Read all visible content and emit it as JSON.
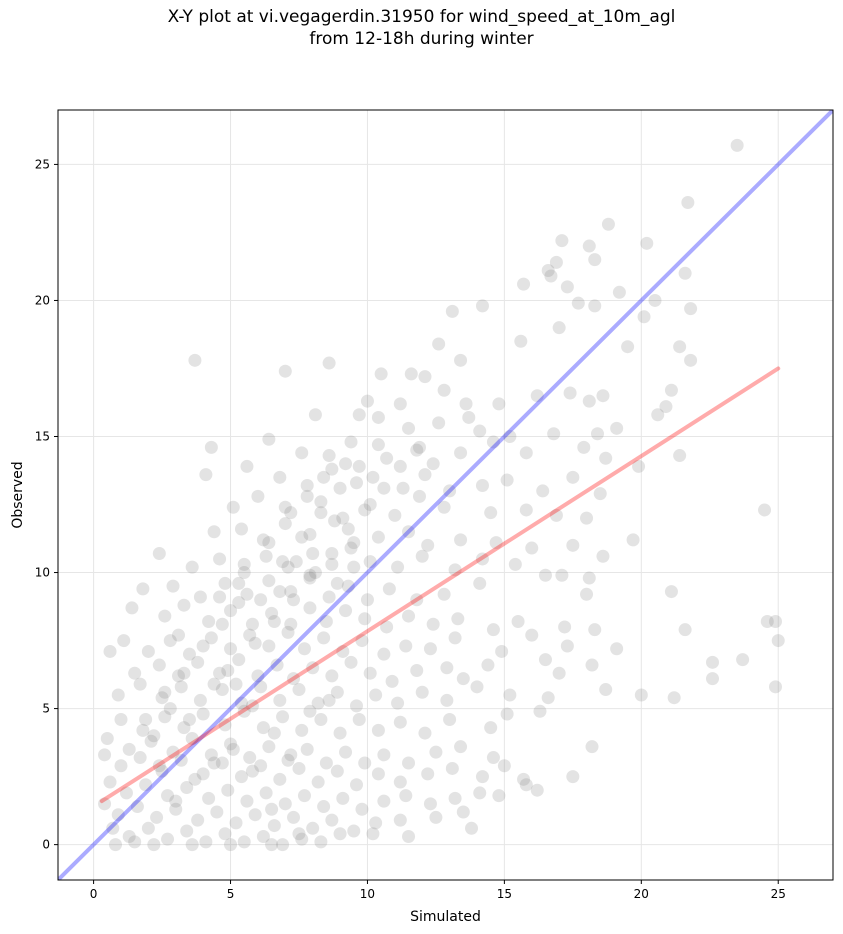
{
  "chart_data": {
    "type": "scatter",
    "title_line1": "X-Y plot at vi.vegagerdin.31950 for wind_speed_at_10m_agl",
    "title_line2": "from 12-18h during winter",
    "xlabel": "Simulated",
    "ylabel": "Observed",
    "xlim": [
      -1.3,
      27
    ],
    "ylim": [
      -1.3,
      27
    ],
    "xticks": [
      0,
      5,
      10,
      15,
      20,
      25
    ],
    "yticks": [
      0,
      5,
      10,
      15,
      20,
      25
    ],
    "grid": true,
    "point_color": "#808080",
    "identity_line": {
      "color": "#0000ff",
      "x": [
        -1.3,
        27
      ],
      "y": [
        -1.3,
        27
      ]
    },
    "regression_line": {
      "color": "#ff0000",
      "x": [
        0.3,
        25
      ],
      "y": [
        1.6,
        17.5
      ]
    },
    "points": [
      [
        23.5,
        25.7
      ],
      [
        21.7,
        23.6
      ],
      [
        18.8,
        22.8
      ],
      [
        17.1,
        22.2
      ],
      [
        20.2,
        22.1
      ],
      [
        18.3,
        21.5
      ],
      [
        16.9,
        21.4
      ],
      [
        16.6,
        21.1
      ],
      [
        18.1,
        22.0
      ],
      [
        21.6,
        21.0
      ],
      [
        16.7,
        20.9
      ],
      [
        15.7,
        20.6
      ],
      [
        17.3,
        20.5
      ],
      [
        20.5,
        20.0
      ],
      [
        14.2,
        19.8
      ],
      [
        17.7,
        19.9
      ],
      [
        18.3,
        19.8
      ],
      [
        21.8,
        19.7
      ],
      [
        19.2,
        20.3
      ],
      [
        20.1,
        19.4
      ],
      [
        13.1,
        19.6
      ],
      [
        17.0,
        19.0
      ],
      [
        19.5,
        18.3
      ],
      [
        15.6,
        18.5
      ],
      [
        12.6,
        18.4
      ],
      [
        3.7,
        17.8
      ],
      [
        7.0,
        17.4
      ],
      [
        8.6,
        17.7
      ],
      [
        13.4,
        17.8
      ],
      [
        21.8,
        17.8
      ],
      [
        10.5,
        17.3
      ],
      [
        11.6,
        17.3
      ],
      [
        12.1,
        17.2
      ],
      [
        21.4,
        18.3
      ],
      [
        17.4,
        16.6
      ],
      [
        18.6,
        16.5
      ],
      [
        21.1,
        16.7
      ],
      [
        16.2,
        16.5
      ],
      [
        12.8,
        16.7
      ],
      [
        13.6,
        16.2
      ],
      [
        11.2,
        16.2
      ],
      [
        14.8,
        16.2
      ],
      [
        10.0,
        16.3
      ],
      [
        18.1,
        16.3
      ],
      [
        20.6,
        15.8
      ],
      [
        8.1,
        15.8
      ],
      [
        9.7,
        15.8
      ],
      [
        15.2,
        15.0
      ],
      [
        16.8,
        15.1
      ],
      [
        18.4,
        15.1
      ],
      [
        20.9,
        16.1
      ],
      [
        19.1,
        15.3
      ],
      [
        14.1,
        15.2
      ],
      [
        10.4,
        15.7
      ],
      [
        11.5,
        15.3
      ],
      [
        12.6,
        15.5
      ],
      [
        13.7,
        15.7
      ],
      [
        4.3,
        14.6
      ],
      [
        6.4,
        14.9
      ],
      [
        7.6,
        14.4
      ],
      [
        8.6,
        14.3
      ],
      [
        9.4,
        14.8
      ],
      [
        10.7,
        14.2
      ],
      [
        11.8,
        14.5
      ],
      [
        12.4,
        14.0
      ],
      [
        13.4,
        14.4
      ],
      [
        14.6,
        14.8
      ],
      [
        15.8,
        14.4
      ],
      [
        17.9,
        14.6
      ],
      [
        18.7,
        14.2
      ],
      [
        19.9,
        13.9
      ],
      [
        21.4,
        14.3
      ],
      [
        4.1,
        13.6
      ],
      [
        5.6,
        13.9
      ],
      [
        6.8,
        13.5
      ],
      [
        7.8,
        13.2
      ],
      [
        8.7,
        13.8
      ],
      [
        9.6,
        13.3
      ],
      [
        10.2,
        13.5
      ],
      [
        11.3,
        13.1
      ],
      [
        12.1,
        13.6
      ],
      [
        13.0,
        13.0
      ],
      [
        14.2,
        13.2
      ],
      [
        15.1,
        13.4
      ],
      [
        16.4,
        13.0
      ],
      [
        17.5,
        13.5
      ],
      [
        18.5,
        12.9
      ],
      [
        5.1,
        12.4
      ],
      [
        6.0,
        12.8
      ],
      [
        7.2,
        12.2
      ],
      [
        8.3,
        12.6
      ],
      [
        9.1,
        12.0
      ],
      [
        10.1,
        12.5
      ],
      [
        11.0,
        12.1
      ],
      [
        11.9,
        12.8
      ],
      [
        12.8,
        12.4
      ],
      [
        14.5,
        12.2
      ],
      [
        15.8,
        12.3
      ],
      [
        16.9,
        12.1
      ],
      [
        18.0,
        12.0
      ],
      [
        24.5,
        12.3
      ],
      [
        4.4,
        11.5
      ],
      [
        5.4,
        11.6
      ],
      [
        6.2,
        11.2
      ],
      [
        7.0,
        11.8
      ],
      [
        7.9,
        11.4
      ],
      [
        8.8,
        11.9
      ],
      [
        9.5,
        11.1
      ],
      [
        10.4,
        11.3
      ],
      [
        11.5,
        11.5
      ],
      [
        12.2,
        11.0
      ],
      [
        13.4,
        11.2
      ],
      [
        14.7,
        11.1
      ],
      [
        16.0,
        10.9
      ],
      [
        17.5,
        11.0
      ],
      [
        18.6,
        10.6
      ],
      [
        19.7,
        11.2
      ],
      [
        2.4,
        10.7
      ],
      [
        3.6,
        10.2
      ],
      [
        4.6,
        10.5
      ],
      [
        5.5,
        10.0
      ],
      [
        6.3,
        10.6
      ],
      [
        7.1,
        10.2
      ],
      [
        8.0,
        10.7
      ],
      [
        8.7,
        10.3
      ],
      [
        9.4,
        10.9
      ],
      [
        10.1,
        10.4
      ],
      [
        11.1,
        10.2
      ],
      [
        12.0,
        10.6
      ],
      [
        13.2,
        10.1
      ],
      [
        14.2,
        10.5
      ],
      [
        15.4,
        10.3
      ],
      [
        17.1,
        9.9
      ],
      [
        18.1,
        9.8
      ],
      [
        1.8,
        9.4
      ],
      [
        2.9,
        9.5
      ],
      [
        3.9,
        9.1
      ],
      [
        4.8,
        9.6
      ],
      [
        5.6,
        9.2
      ],
      [
        6.4,
        9.7
      ],
      [
        7.2,
        9.3
      ],
      [
        7.9,
        9.8
      ],
      [
        8.6,
        9.1
      ],
      [
        9.3,
        9.5
      ],
      [
        10.0,
        9.0
      ],
      [
        10.8,
        9.4
      ],
      [
        11.8,
        9.0
      ],
      [
        12.8,
        9.2
      ],
      [
        14.1,
        9.6
      ],
      [
        16.5,
        9.9
      ],
      [
        18.0,
        9.2
      ],
      [
        21.1,
        9.3
      ],
      [
        1.4,
        8.7
      ],
      [
        2.6,
        8.4
      ],
      [
        3.3,
        8.8
      ],
      [
        4.2,
        8.2
      ],
      [
        5.0,
        8.6
      ],
      [
        5.8,
        8.1
      ],
      [
        6.5,
        8.5
      ],
      [
        7.2,
        8.1
      ],
      [
        7.9,
        8.7
      ],
      [
        8.5,
        8.2
      ],
      [
        9.2,
        8.6
      ],
      [
        9.9,
        8.3
      ],
      [
        10.7,
        8.0
      ],
      [
        11.5,
        8.4
      ],
      [
        12.4,
        8.1
      ],
      [
        13.3,
        8.3
      ],
      [
        14.6,
        7.9
      ],
      [
        15.5,
        8.2
      ],
      [
        17.2,
        8.0
      ],
      [
        18.3,
        7.9
      ],
      [
        21.6,
        7.9
      ],
      [
        24.6,
        8.2
      ],
      [
        24.9,
        8.2
      ],
      [
        1.1,
        7.5
      ],
      [
        2.0,
        7.1
      ],
      [
        2.8,
        7.5
      ],
      [
        3.5,
        7.0
      ],
      [
        4.3,
        7.6
      ],
      [
        5.0,
        7.2
      ],
      [
        5.7,
        7.7
      ],
      [
        6.4,
        7.3
      ],
      [
        7.1,
        7.8
      ],
      [
        7.7,
        7.2
      ],
      [
        8.4,
        7.6
      ],
      [
        9.1,
        7.1
      ],
      [
        9.8,
        7.5
      ],
      [
        10.6,
        7.0
      ],
      [
        11.4,
        7.3
      ],
      [
        12.3,
        7.2
      ],
      [
        13.2,
        7.6
      ],
      [
        14.9,
        7.1
      ],
      [
        16.0,
        7.7
      ],
      [
        17.3,
        7.3
      ],
      [
        19.1,
        7.2
      ],
      [
        25.0,
        7.5
      ],
      [
        0.6,
        7.1
      ],
      [
        1.5,
        6.3
      ],
      [
        2.4,
        6.6
      ],
      [
        3.1,
        6.2
      ],
      [
        3.8,
        6.7
      ],
      [
        4.6,
        6.3
      ],
      [
        5.3,
        6.8
      ],
      [
        6.0,
        6.2
      ],
      [
        6.7,
        6.6
      ],
      [
        7.3,
        6.1
      ],
      [
        8.0,
        6.5
      ],
      [
        8.7,
        6.2
      ],
      [
        9.4,
        6.7
      ],
      [
        10.1,
        6.3
      ],
      [
        10.9,
        6.0
      ],
      [
        11.8,
        6.4
      ],
      [
        12.9,
        6.5
      ],
      [
        13.5,
        6.1
      ],
      [
        14.4,
        6.6
      ],
      [
        16.5,
        6.8
      ],
      [
        17.0,
        6.3
      ],
      [
        18.2,
        6.6
      ],
      [
        22.6,
        6.7
      ],
      [
        22.6,
        6.1
      ],
      [
        23.7,
        6.8
      ],
      [
        0.9,
        5.5
      ],
      [
        1.7,
        5.9
      ],
      [
        2.5,
        5.4
      ],
      [
        3.2,
        5.8
      ],
      [
        3.9,
        5.3
      ],
      [
        4.7,
        5.7
      ],
      [
        5.4,
        5.2
      ],
      [
        6.1,
        5.8
      ],
      [
        6.8,
        5.3
      ],
      [
        7.5,
        5.7
      ],
      [
        8.2,
        5.2
      ],
      [
        8.9,
        5.6
      ],
      [
        9.6,
        5.1
      ],
      [
        10.3,
        5.5
      ],
      [
        11.1,
        5.2
      ],
      [
        12.0,
        5.6
      ],
      [
        12.9,
        5.3
      ],
      [
        14.0,
        5.8
      ],
      [
        15.2,
        5.5
      ],
      [
        16.6,
        5.4
      ],
      [
        18.7,
        5.7
      ],
      [
        20.0,
        5.5
      ],
      [
        21.2,
        5.4
      ],
      [
        24.9,
        5.8
      ],
      [
        1.0,
        4.6
      ],
      [
        1.8,
        4.2
      ],
      [
        2.6,
        4.7
      ],
      [
        3.3,
        4.3
      ],
      [
        4.0,
        4.8
      ],
      [
        4.8,
        4.4
      ],
      [
        5.5,
        4.9
      ],
      [
        6.2,
        4.3
      ],
      [
        6.9,
        4.7
      ],
      [
        7.6,
        4.2
      ],
      [
        8.3,
        4.6
      ],
      [
        9.0,
        4.1
      ],
      [
        9.7,
        4.6
      ],
      [
        10.4,
        4.2
      ],
      [
        11.2,
        4.5
      ],
      [
        12.1,
        4.1
      ],
      [
        13.0,
        4.6
      ],
      [
        14.5,
        4.3
      ],
      [
        15.1,
        4.8
      ],
      [
        16.3,
        4.9
      ],
      [
        18.2,
        3.6
      ],
      [
        0.5,
        3.9
      ],
      [
        1.3,
        3.5
      ],
      [
        2.1,
        3.8
      ],
      [
        2.9,
        3.4
      ],
      [
        3.6,
        3.9
      ],
      [
        4.3,
        3.3
      ],
      [
        5.0,
        3.7
      ],
      [
        5.7,
        3.2
      ],
      [
        6.4,
        3.6
      ],
      [
        7.1,
        3.1
      ],
      [
        7.8,
        3.5
      ],
      [
        8.5,
        3.0
      ],
      [
        9.2,
        3.4
      ],
      [
        9.9,
        3.0
      ],
      [
        10.6,
        3.3
      ],
      [
        11.5,
        3.0
      ],
      [
        12.5,
        3.4
      ],
      [
        13.4,
        3.6
      ],
      [
        14.6,
        3.2
      ],
      [
        0.4,
        3.3
      ],
      [
        1.0,
        2.9
      ],
      [
        1.7,
        3.2
      ],
      [
        2.5,
        2.7
      ],
      [
        3.2,
        3.1
      ],
      [
        4.0,
        2.6
      ],
      [
        4.7,
        3.0
      ],
      [
        5.4,
        2.5
      ],
      [
        6.1,
        2.9
      ],
      [
        6.8,
        2.4
      ],
      [
        7.5,
        2.8
      ],
      [
        8.2,
        2.3
      ],
      [
        8.9,
        2.7
      ],
      [
        9.6,
        2.2
      ],
      [
        10.4,
        2.6
      ],
      [
        11.2,
        2.3
      ],
      [
        12.2,
        2.6
      ],
      [
        13.1,
        2.8
      ],
      [
        14.2,
        2.5
      ],
      [
        15.0,
        2.9
      ],
      [
        15.7,
        2.4
      ],
      [
        17.5,
        2.5
      ],
      [
        0.6,
        2.3
      ],
      [
        1.2,
        1.9
      ],
      [
        1.9,
        2.2
      ],
      [
        2.7,
        1.8
      ],
      [
        3.4,
        2.1
      ],
      [
        4.2,
        1.7
      ],
      [
        4.9,
        2.0
      ],
      [
        5.6,
        1.6
      ],
      [
        6.3,
        1.9
      ],
      [
        7.0,
        1.5
      ],
      [
        7.7,
        1.8
      ],
      [
        8.4,
        1.4
      ],
      [
        9.1,
        1.7
      ],
      [
        9.8,
        1.3
      ],
      [
        10.6,
        1.6
      ],
      [
        11.4,
        1.8
      ],
      [
        12.3,
        1.5
      ],
      [
        13.2,
        1.7
      ],
      [
        14.1,
        1.9
      ],
      [
        15.8,
        2.2
      ],
      [
        16.2,
        2.0
      ],
      [
        0.4,
        1.5
      ],
      [
        0.9,
        1.1
      ],
      [
        1.6,
        1.4
      ],
      [
        2.3,
        1.0
      ],
      [
        3.0,
        1.3
      ],
      [
        3.8,
        0.9
      ],
      [
        4.5,
        1.2
      ],
      [
        5.2,
        0.8
      ],
      [
        5.9,
        1.1
      ],
      [
        6.6,
        0.7
      ],
      [
        7.3,
        1.0
      ],
      [
        8.0,
        0.6
      ],
      [
        8.7,
        0.9
      ],
      [
        9.5,
        0.5
      ],
      [
        10.3,
        0.8
      ],
      [
        11.2,
        0.9
      ],
      [
        12.5,
        1.0
      ],
      [
        13.5,
        1.2
      ],
      [
        14.8,
        1.8
      ],
      [
        0.7,
        0.6
      ],
      [
        1.3,
        0.3
      ],
      [
        2.0,
        0.6
      ],
      [
        2.7,
        0.2
      ],
      [
        3.4,
        0.5
      ],
      [
        4.1,
        0.1
      ],
      [
        4.8,
        0.4
      ],
      [
        5.5,
        0.1
      ],
      [
        6.2,
        0.3
      ],
      [
        6.9,
        0.0
      ],
      [
        7.6,
        0.2
      ],
      [
        8.3,
        0.1
      ],
      [
        9.0,
        0.4
      ],
      [
        10.2,
        0.4
      ],
      [
        11.5,
        0.3
      ],
      [
        13.8,
        0.6
      ],
      [
        0.8,
        0.0
      ],
      [
        1.5,
        0.1
      ],
      [
        2.2,
        0.0
      ],
      [
        3.6,
        0.0
      ],
      [
        5.0,
        0.0
      ],
      [
        6.5,
        0.0
      ],
      [
        7.5,
        0.4
      ],
      [
        2.2,
        4.0
      ],
      [
        2.8,
        5.0
      ],
      [
        3.5,
        4.6
      ],
      [
        4.4,
        5.9
      ],
      [
        4.9,
        6.4
      ],
      [
        5.9,
        7.4
      ],
      [
        6.6,
        8.2
      ],
      [
        7.3,
        9.0
      ],
      [
        7.9,
        9.9
      ],
      [
        8.7,
        10.7
      ],
      [
        9.3,
        11.6
      ],
      [
        9.9,
        12.3
      ],
      [
        10.6,
        13.1
      ],
      [
        11.2,
        13.9
      ],
      [
        11.9,
        14.6
      ],
      [
        6.9,
        10.4
      ],
      [
        7.6,
        11.3
      ],
      [
        8.3,
        12.2
      ],
      [
        9.0,
        13.1
      ],
      [
        9.7,
        13.9
      ],
      [
        10.4,
        14.7
      ],
      [
        5.3,
        9.6
      ],
      [
        6.1,
        9.0
      ],
      [
        6.8,
        9.3
      ],
      [
        7.4,
        10.4
      ],
      [
        8.1,
        10.0
      ],
      [
        8.9,
        9.6
      ],
      [
        9.5,
        10.2
      ],
      [
        5.2,
        5.9
      ],
      [
        5.8,
        5.1
      ],
      [
        6.6,
        4.1
      ],
      [
        7.2,
        3.3
      ],
      [
        7.9,
        4.9
      ],
      [
        8.6,
        5.3
      ],
      [
        5.1,
        3.5
      ],
      [
        5.8,
        2.7
      ],
      [
        6.5,
        1.3
      ],
      [
        3.0,
        1.6
      ],
      [
        3.7,
        2.4
      ],
      [
        4.4,
        3.0
      ],
      [
        2.4,
        2.9
      ],
      [
        1.9,
        4.6
      ],
      [
        2.6,
        5.6
      ],
      [
        3.3,
        6.3
      ],
      [
        4.0,
        7.3
      ],
      [
        4.7,
        8.1
      ],
      [
        5.3,
        8.9
      ],
      [
        3.1,
        7.7
      ],
      [
        4.6,
        9.1
      ],
      [
        5.5,
        10.3
      ],
      [
        6.4,
        11.1
      ],
      [
        7.0,
        12.4
      ],
      [
        7.8,
        12.8
      ],
      [
        8.4,
        13.5
      ],
      [
        9.2,
        14.0
      ]
    ]
  }
}
